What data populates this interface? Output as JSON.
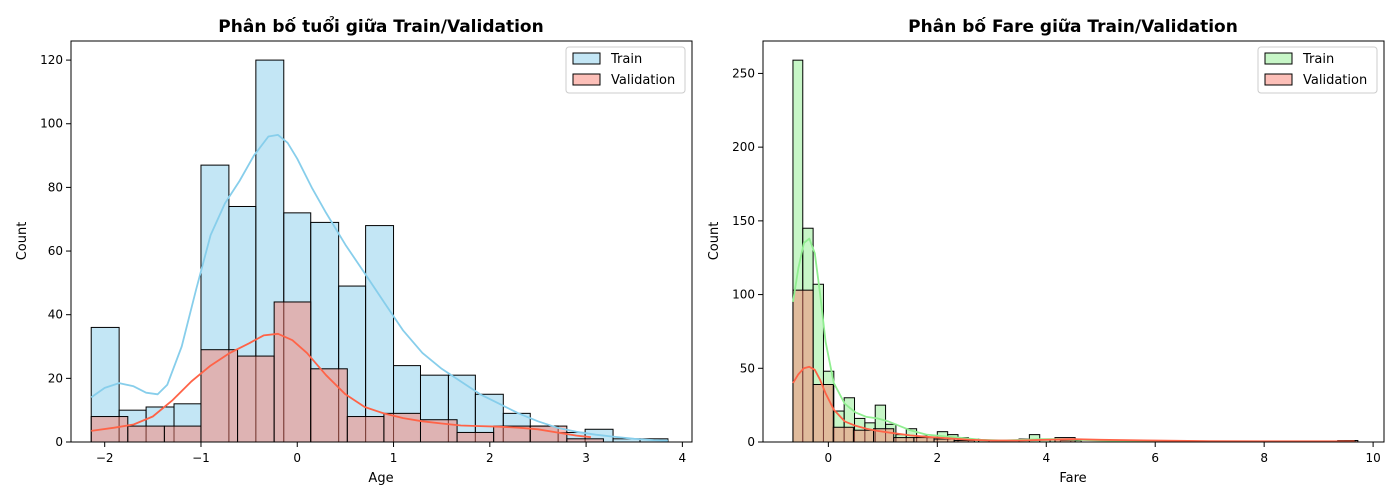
{
  "chart_data": [
    {
      "type": "histogram",
      "title": "Phân bố tuổi giữa Train/Validation",
      "xlabel": "Age",
      "ylabel": "Count",
      "xlim": [
        -2.35,
        4.1
      ],
      "ylim": [
        0,
        126
      ],
      "xticks": [
        -2,
        -1,
        0,
        1,
        2,
        3,
        4
      ],
      "xtick_labels": [
        "−2",
        "−1",
        "0",
        "1",
        "2",
        "3",
        "4"
      ],
      "yticks": [
        0,
        20,
        40,
        60,
        80,
        100,
        120
      ],
      "grid": false,
      "legend": "top-right",
      "series": [
        {
          "name": "Train",
          "color": "#87ceeb",
          "bins": [
            {
              "x0": -2.14,
              "x1": -1.85,
              "count": 36
            },
            {
              "x0": -1.85,
              "x1": -1.57,
              "count": 10
            },
            {
              "x0": -1.57,
              "x1": -1.28,
              "count": 11
            },
            {
              "x0": -1.28,
              "x1": -1.0,
              "count": 12
            },
            {
              "x0": -1.0,
              "x1": -0.71,
              "count": 87
            },
            {
              "x0": -0.71,
              "x1": -0.43,
              "count": 74
            },
            {
              "x0": -0.43,
              "x1": -0.14,
              "count": 120
            },
            {
              "x0": -0.14,
              "x1": 0.14,
              "count": 72
            },
            {
              "x0": 0.14,
              "x1": 0.43,
              "count": 69
            },
            {
              "x0": 0.43,
              "x1": 0.71,
              "count": 49
            },
            {
              "x0": 0.71,
              "x1": 1.0,
              "count": 68
            },
            {
              "x0": 1.0,
              "x1": 1.28,
              "count": 24
            },
            {
              "x0": 1.28,
              "x1": 1.57,
              "count": 21
            },
            {
              "x0": 1.57,
              "x1": 1.85,
              "count": 21
            },
            {
              "x0": 1.85,
              "x1": 2.14,
              "count": 15
            },
            {
              "x0": 2.14,
              "x1": 2.42,
              "count": 9
            },
            {
              "x0": 2.42,
              "x1": 2.71,
              "count": 5
            },
            {
              "x0": 2.71,
              "x1": 2.99,
              "count": 3
            },
            {
              "x0": 2.99,
              "x1": 3.28,
              "count": 4
            },
            {
              "x0": 3.28,
              "x1": 3.56,
              "count": 1
            },
            {
              "x0": 3.56,
              "x1": 3.85,
              "count": 1
            }
          ],
          "kde": {
            "x": [
              -2.14,
              -2.0,
              -1.85,
              -1.7,
              -1.57,
              -1.45,
              -1.35,
              -1.2,
              -1.05,
              -0.9,
              -0.75,
              -0.6,
              -0.45,
              -0.3,
              -0.2,
              -0.1,
              0.0,
              0.15,
              0.3,
              0.5,
              0.7,
              0.9,
              1.1,
              1.3,
              1.5,
              1.7,
              1.9,
              2.1,
              2.3,
              2.5,
              2.7,
              2.9,
              3.1,
              3.3,
              3.5,
              3.7,
              3.85
            ],
            "y": [
              14,
              17,
              18.5,
              17.5,
              15.5,
              15,
              18,
              30,
              48,
              65,
              75,
              82,
              90,
              96,
              96.5,
              94,
              89,
              80,
              72,
              62,
              53,
              44,
              35,
              28,
              23,
              19,
              15,
              12,
              9,
              6.5,
              4.5,
              3.2,
              2.3,
              1.6,
              1.0,
              0.6,
              0.4
            ]
          }
        },
        {
          "name": "Validation",
          "color": "#fa8072",
          "bins": [
            {
              "x0": -2.14,
              "x1": -1.76,
              "count": 8
            },
            {
              "x0": -1.76,
              "x1": -1.38,
              "count": 5
            },
            {
              "x0": -1.38,
              "x1": -1.0,
              "count": 5
            },
            {
              "x0": -1.0,
              "x1": -0.62,
              "count": 29
            },
            {
              "x0": -0.62,
              "x1": -0.24,
              "count": 27
            },
            {
              "x0": -0.24,
              "x1": 0.14,
              "count": 44
            },
            {
              "x0": 0.14,
              "x1": 0.52,
              "count": 23
            },
            {
              "x0": 0.52,
              "x1": 0.9,
              "count": 8
            },
            {
              "x0": 0.9,
              "x1": 1.28,
              "count": 9
            },
            {
              "x0": 1.28,
              "x1": 1.66,
              "count": 7
            },
            {
              "x0": 1.66,
              "x1": 2.04,
              "count": 3
            },
            {
              "x0": 2.04,
              "x1": 2.42,
              "count": 5
            },
            {
              "x0": 2.42,
              "x1": 2.8,
              "count": 5
            },
            {
              "x0": 2.8,
              "x1": 3.18,
              "count": 1
            }
          ],
          "kde": {
            "x": [
              -2.14,
              -1.9,
              -1.7,
              -1.5,
              -1.3,
              -1.1,
              -0.9,
              -0.7,
              -0.5,
              -0.35,
              -0.2,
              -0.05,
              0.1,
              0.3,
              0.5,
              0.7,
              0.9,
              1.1,
              1.3,
              1.5,
              1.7,
              1.9,
              2.1,
              2.3,
              2.5,
              2.7,
              2.9,
              3.05
            ],
            "y": [
              3.5,
              4.5,
              5.5,
              8,
              13,
              19,
              24,
              28,
              31,
              33.5,
              34,
              32,
              28,
              21,
              15,
              11,
              9,
              7.5,
              6.5,
              5.8,
              5.2,
              5,
              4.8,
              4.5,
              4,
              3,
              2,
              1.5
            ]
          }
        }
      ]
    },
    {
      "type": "histogram",
      "title": "Phân bố Fare giữa Train/Validation",
      "xlabel": "Fare",
      "ylabel": "Count",
      "xlim": [
        -1.2,
        10.2
      ],
      "ylim": [
        0,
        272
      ],
      "xticks": [
        0,
        2,
        4,
        6,
        8,
        10
      ],
      "xtick_labels": [
        "0",
        "2",
        "4",
        "6",
        "8",
        "10"
      ],
      "yticks": [
        0,
        50,
        100,
        150,
        200,
        250
      ],
      "grid": false,
      "legend": "top-right",
      "series": [
        {
          "name": "Train",
          "color": "#90ee90",
          "bins": [
            {
              "x0": -0.65,
              "x1": -0.47,
              "count": 259
            },
            {
              "x0": -0.47,
              "x1": -0.28,
              "count": 145
            },
            {
              "x0": -0.28,
              "x1": -0.09,
              "count": 107
            },
            {
              "x0": -0.09,
              "x1": 0.1,
              "count": 48
            },
            {
              "x0": 0.1,
              "x1": 0.29,
              "count": 21
            },
            {
              "x0": 0.29,
              "x1": 0.48,
              "count": 30
            },
            {
              "x0": 0.48,
              "x1": 0.67,
              "count": 16
            },
            {
              "x0": 0.67,
              "x1": 0.86,
              "count": 13
            },
            {
              "x0": 0.86,
              "x1": 1.05,
              "count": 25
            },
            {
              "x0": 1.05,
              "x1": 1.24,
              "count": 12
            },
            {
              "x0": 1.24,
              "x1": 1.43,
              "count": 5
            },
            {
              "x0": 1.43,
              "x1": 1.62,
              "count": 9
            },
            {
              "x0": 1.62,
              "x1": 1.81,
              "count": 4
            },
            {
              "x0": 1.81,
              "x1": 2.0,
              "count": 3
            },
            {
              "x0": 2.0,
              "x1": 2.19,
              "count": 7
            },
            {
              "x0": 2.19,
              "x1": 2.38,
              "count": 5
            },
            {
              "x0": 2.38,
              "x1": 2.57,
              "count": 3
            },
            {
              "x0": 2.57,
              "x1": 2.76,
              "count": 2
            },
            {
              "x0": 2.76,
              "x1": 2.95,
              "count": 1
            },
            {
              "x0": 3.5,
              "x1": 3.69,
              "count": 2
            },
            {
              "x0": 3.69,
              "x1": 3.88,
              "count": 5
            },
            {
              "x0": 3.88,
              "x1": 4.07,
              "count": 2
            },
            {
              "x0": 4.07,
              "x1": 4.26,
              "count": 2
            },
            {
              "x0": 4.26,
              "x1": 4.45,
              "count": 1
            },
            {
              "x0": 4.45,
              "x1": 4.64,
              "count": 1
            },
            {
              "x0": 9.48,
              "x1": 9.67,
              "count": 1
            }
          ],
          "kde": {
            "x": [
              -0.65,
              -0.55,
              -0.45,
              -0.35,
              -0.25,
              -0.15,
              -0.05,
              0.1,
              0.3,
              0.5,
              0.7,
              0.9,
              1.1,
              1.3,
              1.5,
              1.8,
              2.1,
              2.4,
              2.8,
              3.2,
              3.6,
              3.9,
              4.2,
              4.6,
              5.0,
              6.0,
              8.0,
              9.66
            ],
            "y": [
              95,
              118,
              135,
              138,
              128,
              100,
              68,
              40,
              26,
              20,
              17,
              16,
              14,
              11,
              8,
              5,
              4,
              3,
              1.5,
              1,
              1.5,
              2,
              2,
              1.5,
              1,
              0.5,
              0.3,
              0.3
            ]
          }
        },
        {
          "name": "Validation",
          "color": "#fa8072",
          "bins": [
            {
              "x0": -0.65,
              "x1": -0.28,
              "count": 103
            },
            {
              "x0": -0.28,
              "x1": 0.09,
              "count": 39
            },
            {
              "x0": 0.09,
              "x1": 0.46,
              "count": 10
            },
            {
              "x0": 0.46,
              "x1": 0.83,
              "count": 8
            },
            {
              "x0": 0.83,
              "x1": 1.2,
              "count": 9
            },
            {
              "x0": 1.2,
              "x1": 1.57,
              "count": 3
            },
            {
              "x0": 1.57,
              "x1": 1.94,
              "count": 3
            },
            {
              "x0": 1.94,
              "x1": 2.31,
              "count": 2
            },
            {
              "x0": 2.31,
              "x1": 2.68,
              "count": 1
            },
            {
              "x0": 4.16,
              "x1": 4.53,
              "count": 3
            },
            {
              "x0": 9.35,
              "x1": 9.72,
              "count": 1
            }
          ],
          "kde": {
            "x": [
              -0.65,
              -0.55,
              -0.45,
              -0.35,
              -0.25,
              -0.15,
              -0.05,
              0.1,
              0.3,
              0.5,
              0.7,
              0.9,
              1.2,
              1.5,
              1.8,
              2.2,
              2.6,
              3.0,
              3.5,
              4.0,
              4.5,
              5.0,
              6.0,
              7.0,
              8.0,
              9.0,
              9.66
            ],
            "y": [
              40,
              46,
              50,
              51,
              49,
              42,
              33,
              22,
              14,
              11,
              9,
              7.5,
              6,
              4.5,
              3.5,
              2.5,
              1.5,
              1,
              1,
              1.5,
              2,
              1.5,
              1,
              0.6,
              0.5,
              0.5,
              0.5
            ]
          }
        }
      ]
    }
  ]
}
